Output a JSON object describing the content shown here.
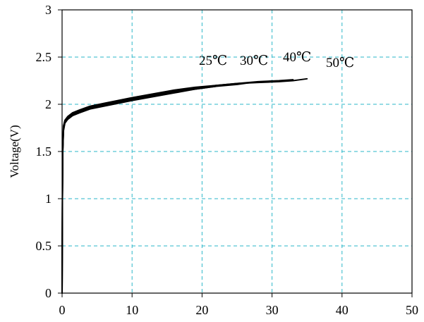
{
  "chart_data": {
    "type": "line",
    "title": "",
    "xlabel": "",
    "ylabel": "Voltage(V)",
    "xlim": [
      0,
      50
    ],
    "ylim": [
      0,
      3
    ],
    "xticks": [
      0,
      10,
      20,
      30,
      40,
      50
    ],
    "yticks": [
      0,
      0.5,
      1,
      1.5,
      2,
      2.5,
      3
    ],
    "xtick_labels": [
      "0",
      "10",
      "20",
      "30",
      "40",
      "50"
    ],
    "ytick_labels": [
      "0",
      "0.5",
      "1",
      "1.5",
      "2",
      "2.5",
      "3"
    ],
    "grid": true,
    "grid_color": "#2bb7c9",
    "line_color": "#000000",
    "series": [
      {
        "name": "25℃",
        "points": [
          [
            0,
            0
          ],
          [
            0.02,
            0.4
          ],
          [
            0.05,
            1.0
          ],
          [
            0.1,
            1.5
          ],
          [
            0.2,
            1.72
          ],
          [
            0.4,
            1.8
          ],
          [
            0.8,
            1.84
          ],
          [
            1.5,
            1.88
          ],
          [
            2.5,
            1.91
          ],
          [
            4,
            1.95
          ],
          [
            6,
            1.98
          ],
          [
            8,
            2.01
          ],
          [
            10,
            2.04
          ],
          [
            13,
            2.08
          ],
          [
            16,
            2.12
          ],
          [
            19,
            2.16
          ],
          [
            22,
            2.19
          ]
        ]
      },
      {
        "name": "30℃",
        "points": [
          [
            0,
            0
          ],
          [
            0.02,
            0.4
          ],
          [
            0.05,
            1.0
          ],
          [
            0.1,
            1.5
          ],
          [
            0.2,
            1.73
          ],
          [
            0.4,
            1.81
          ],
          [
            0.8,
            1.85
          ],
          [
            1.5,
            1.89
          ],
          [
            2.5,
            1.92
          ],
          [
            4,
            1.96
          ],
          [
            6,
            1.99
          ],
          [
            8,
            2.02
          ],
          [
            10,
            2.05
          ],
          [
            13,
            2.09
          ],
          [
            16,
            2.13
          ],
          [
            19,
            2.16
          ],
          [
            22,
            2.19
          ],
          [
            25,
            2.21
          ],
          [
            27,
            2.23
          ]
        ]
      },
      {
        "name": "40℃",
        "points": [
          [
            0,
            0
          ],
          [
            0.02,
            0.4
          ],
          [
            0.05,
            1.0
          ],
          [
            0.1,
            1.52
          ],
          [
            0.2,
            1.75
          ],
          [
            0.4,
            1.82
          ],
          [
            0.8,
            1.86
          ],
          [
            1.5,
            1.9
          ],
          [
            2.5,
            1.93
          ],
          [
            4,
            1.97
          ],
          [
            6,
            2.0
          ],
          [
            8,
            2.03
          ],
          [
            10,
            2.06
          ],
          [
            13,
            2.1
          ],
          [
            16,
            2.14
          ],
          [
            19,
            2.17
          ],
          [
            22,
            2.2
          ],
          [
            25,
            2.22
          ],
          [
            28,
            2.24
          ],
          [
            31,
            2.25
          ],
          [
            33,
            2.26
          ]
        ]
      },
      {
        "name": "50℃",
        "points": [
          [
            0,
            0
          ],
          [
            0.02,
            0.4
          ],
          [
            0.05,
            1.0
          ],
          [
            0.1,
            1.54
          ],
          [
            0.2,
            1.77
          ],
          [
            0.4,
            1.83
          ],
          [
            0.8,
            1.87
          ],
          [
            1.5,
            1.91
          ],
          [
            2.5,
            1.94
          ],
          [
            4,
            1.98
          ],
          [
            6,
            2.01
          ],
          [
            8,
            2.04
          ],
          [
            10,
            2.07
          ],
          [
            13,
            2.11
          ],
          [
            16,
            2.15
          ],
          [
            19,
            2.18
          ],
          [
            22,
            2.2
          ],
          [
            25,
            2.22
          ],
          [
            28,
            2.23
          ],
          [
            31,
            2.24
          ],
          [
            33,
            2.25
          ],
          [
            35,
            2.27
          ]
        ]
      }
    ],
    "series_labels": [
      "25℃",
      "30℃",
      "40℃",
      "50℃"
    ]
  }
}
